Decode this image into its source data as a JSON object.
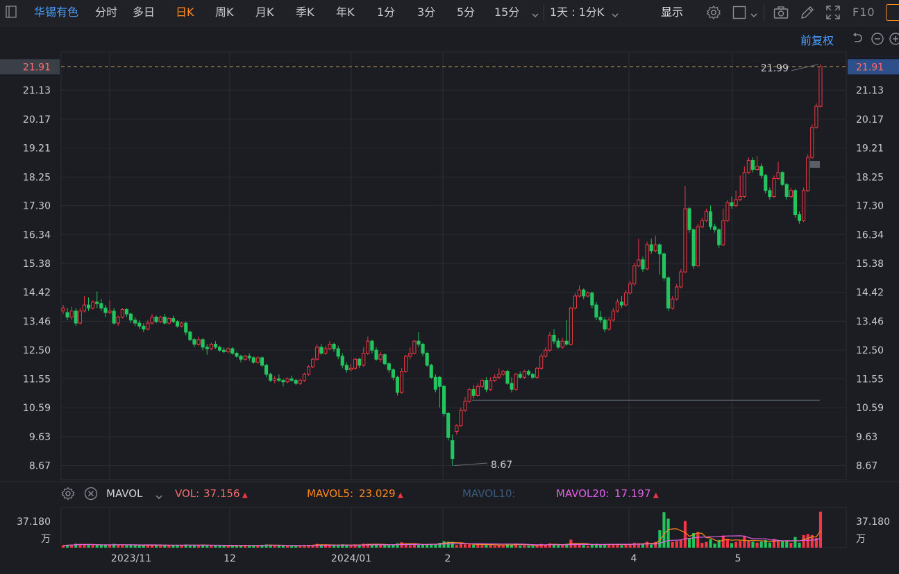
{
  "toolbar": {
    "stock_name": "华锡有色",
    "periods": [
      "分时",
      "多日",
      "日K",
      "周K",
      "月K",
      "季K",
      "年K",
      "1分",
      "3分",
      "5分",
      "15分"
    ],
    "active_period": "日K",
    "interval_select": "1天 : 1分K",
    "display_label": "显示",
    "f10_label": "F10",
    "icons": [
      "sidebar-toggle-icon",
      "chevron-down-icon",
      "gear-icon",
      "square-icon",
      "camera-icon",
      "pen-icon",
      "fullscreen-icon"
    ]
  },
  "fuquan_label": "前复权",
  "price_axis": {
    "ticks": [
      "21.13",
      "20.17",
      "19.21",
      "18.25",
      "17.30",
      "16.34",
      "15.38",
      "14.42",
      "13.46",
      "12.50",
      "11.55",
      "10.59",
      "9.63",
      "8.67"
    ],
    "current_price": "21.91"
  },
  "annotations": {
    "high": "21.99",
    "low": "8.67"
  },
  "volume_panel": {
    "indicator": "MAVOL",
    "vol_label": "VOL:",
    "vol_value": "37.156",
    "mavol5_label": "MAVOL5:",
    "mavol5_value": "23.029",
    "mavol10_label": "MAVOL10:",
    "mavol20_label": "MAVOL20:",
    "mavol20_value": "17.197",
    "axis_value": "37.180",
    "axis_unit": "万"
  },
  "x_axis": {
    "labels": [
      "2023/11",
      "12",
      "2024/01",
      "2",
      "4",
      "5"
    ]
  },
  "colors": {
    "up": "#f23645",
    "down": "#22c55e",
    "bg": "#1b1d22",
    "grid": "#2a2d33",
    "mavol5": "#ff8a1f",
    "mavol20": "#e062e6",
    "current_tag": "#2d4f8a"
  },
  "chart_data": {
    "type": "candlestick",
    "x_labels": [
      "2023/11",
      "12",
      "2024/01",
      "2",
      "4",
      "5"
    ],
    "ylim": [
      8.2,
      22.4
    ],
    "price_ticks": [
      21.13,
      20.17,
      19.21,
      18.25,
      17.3,
      16.34,
      15.38,
      14.42,
      13.46,
      12.5,
      11.55,
      10.59,
      9.63,
      8.67
    ],
    "current_price": 21.91,
    "high": 21.99,
    "low": 8.67,
    "support_line": 10.84,
    "candles": [
      [
        13.8,
        13.9,
        13.7,
        14.0
      ],
      [
        13.75,
        13.6,
        13.5,
        13.9
      ],
      [
        13.6,
        13.8,
        13.5,
        13.95
      ],
      [
        13.8,
        13.4,
        13.3,
        13.9
      ],
      [
        13.4,
        13.8,
        13.35,
        13.9
      ],
      [
        13.8,
        14.0,
        13.75,
        14.3
      ],
      [
        14.0,
        13.9,
        13.8,
        14.25
      ],
      [
        13.9,
        14.1,
        13.85,
        14.15
      ],
      [
        14.1,
        14.05,
        13.9,
        14.45
      ],
      [
        14.05,
        13.9,
        13.8,
        14.2
      ],
      [
        13.9,
        13.75,
        13.6,
        14.0
      ],
      [
        13.75,
        13.8,
        13.7,
        14.15
      ],
      [
        13.8,
        13.4,
        13.35,
        13.9
      ],
      [
        13.4,
        13.6,
        13.3,
        13.65
      ],
      [
        13.6,
        13.85,
        13.55,
        13.9
      ],
      [
        13.85,
        13.7,
        13.6,
        13.9
      ],
      [
        13.7,
        13.5,
        13.4,
        13.75
      ],
      [
        13.5,
        13.4,
        13.3,
        13.6
      ],
      [
        13.4,
        13.3,
        13.2,
        13.5
      ],
      [
        13.3,
        13.2,
        13.1,
        13.4
      ],
      [
        13.2,
        13.4,
        13.15,
        13.5
      ],
      [
        13.4,
        13.6,
        13.35,
        13.7
      ],
      [
        13.6,
        13.45,
        13.4,
        13.65
      ],
      [
        13.45,
        13.6,
        13.4,
        13.65
      ],
      [
        13.6,
        13.4,
        13.35,
        13.7
      ],
      [
        13.4,
        13.55,
        13.35,
        13.6
      ],
      [
        13.55,
        13.45,
        13.4,
        13.65
      ],
      [
        13.45,
        13.3,
        13.25,
        13.5
      ],
      [
        13.3,
        13.4,
        13.25,
        13.45
      ],
      [
        13.4,
        13.1,
        13.0,
        13.45
      ],
      [
        13.1,
        12.85,
        12.8,
        13.15
      ],
      [
        12.85,
        12.7,
        12.6,
        12.9
      ],
      [
        12.7,
        12.85,
        12.65,
        12.95
      ],
      [
        12.85,
        12.6,
        12.5,
        12.9
      ],
      [
        12.6,
        12.55,
        12.35,
        12.7
      ],
      [
        12.55,
        12.7,
        12.5,
        12.75
      ],
      [
        12.7,
        12.6,
        12.55,
        12.8
      ],
      [
        12.6,
        12.5,
        12.45,
        12.65
      ],
      [
        12.5,
        12.45,
        12.4,
        12.6
      ],
      [
        12.45,
        12.55,
        12.4,
        12.6
      ],
      [
        12.55,
        12.4,
        12.35,
        12.6
      ],
      [
        12.4,
        12.3,
        12.25,
        12.45
      ],
      [
        12.3,
        12.2,
        12.1,
        12.35
      ],
      [
        12.2,
        12.3,
        12.15,
        12.35
      ],
      [
        12.3,
        12.25,
        12.15,
        12.4
      ],
      [
        12.25,
        12.1,
        12.05,
        12.3
      ],
      [
        12.1,
        12.25,
        12.05,
        12.3
      ],
      [
        12.25,
        12.0,
        11.95,
        12.3
      ],
      [
        12.0,
        11.7,
        11.6,
        12.05
      ],
      [
        11.7,
        11.5,
        11.45,
        11.75
      ],
      [
        11.5,
        11.55,
        11.4,
        11.65
      ],
      [
        11.55,
        11.5,
        11.45,
        11.7
      ],
      [
        11.5,
        11.45,
        11.3,
        11.55
      ],
      [
        11.45,
        11.55,
        11.4,
        11.6
      ],
      [
        11.55,
        11.5,
        11.45,
        11.65
      ],
      [
        11.5,
        11.4,
        11.35,
        11.55
      ],
      [
        11.4,
        11.5,
        11.35,
        11.55
      ],
      [
        11.5,
        11.7,
        11.45,
        11.75
      ],
      [
        11.7,
        11.95,
        11.65,
        12.0
      ],
      [
        11.95,
        12.2,
        11.9,
        12.25
      ],
      [
        12.2,
        12.6,
        12.15,
        12.7
      ],
      [
        12.6,
        12.4,
        12.35,
        12.7
      ],
      [
        12.4,
        12.55,
        12.35,
        12.65
      ],
      [
        12.55,
        12.7,
        12.5,
        12.8
      ],
      [
        12.7,
        12.55,
        12.45,
        12.75
      ],
      [
        12.55,
        12.3,
        12.2,
        12.65
      ],
      [
        12.3,
        12.0,
        11.9,
        12.4
      ],
      [
        12.0,
        11.85,
        11.75,
        12.1
      ],
      [
        11.85,
        11.9,
        11.8,
        12.05
      ],
      [
        11.9,
        12.2,
        11.85,
        12.25
      ],
      [
        12.2,
        12.0,
        11.9,
        12.25
      ],
      [
        12.0,
        12.4,
        11.95,
        12.6
      ],
      [
        12.4,
        12.8,
        12.35,
        12.95
      ],
      [
        12.8,
        12.5,
        12.4,
        12.85
      ],
      [
        12.5,
        12.2,
        12.15,
        12.6
      ],
      [
        12.2,
        12.35,
        12.1,
        12.45
      ],
      [
        12.35,
        12.05,
        12.0,
        12.4
      ],
      [
        12.05,
        11.85,
        11.75,
        12.1
      ],
      [
        11.85,
        11.6,
        11.5,
        11.9
      ],
      [
        11.6,
        11.1,
        11.0,
        11.65
      ],
      [
        11.1,
        11.8,
        11.05,
        11.9
      ],
      [
        11.8,
        12.3,
        11.75,
        12.35
      ],
      [
        12.3,
        12.4,
        12.2,
        12.6
      ],
      [
        12.4,
        12.8,
        12.35,
        12.85
      ],
      [
        12.8,
        12.7,
        12.6,
        13.1
      ],
      [
        12.7,
        12.4,
        12.3,
        12.75
      ],
      [
        12.4,
        12.0,
        11.95,
        12.45
      ],
      [
        12.0,
        11.6,
        11.55,
        12.05
      ],
      [
        11.6,
        11.2,
        11.1,
        11.7
      ],
      [
        11.6,
        11.3,
        10.6,
        11.65
      ],
      [
        11.3,
        10.4,
        10.3,
        11.35
      ],
      [
        10.4,
        9.6,
        9.5,
        10.45
      ],
      [
        9.5,
        8.9,
        8.67,
        9.7
      ],
      [
        9.8,
        10.0,
        9.7,
        10.05
      ],
      [
        10.0,
        10.5,
        9.95,
        10.6
      ],
      [
        10.5,
        10.8,
        10.45,
        10.95
      ],
      [
        10.8,
        11.2,
        10.75,
        11.25
      ],
      [
        11.2,
        11.0,
        10.9,
        11.35
      ],
      [
        11.0,
        11.3,
        10.95,
        11.4
      ],
      [
        11.3,
        11.5,
        11.25,
        11.55
      ],
      [
        11.5,
        11.2,
        11.1,
        11.6
      ],
      [
        11.2,
        11.5,
        11.15,
        11.6
      ],
      [
        11.5,
        11.6,
        11.45,
        11.7
      ],
      [
        11.6,
        11.7,
        11.55,
        11.9
      ],
      [
        11.7,
        11.8,
        11.65,
        11.85
      ],
      [
        11.8,
        11.4,
        11.35,
        11.85
      ],
      [
        11.4,
        11.2,
        11.1,
        11.6
      ],
      [
        11.2,
        11.7,
        11.15,
        11.75
      ],
      [
        11.7,
        11.6,
        11.55,
        11.8
      ],
      [
        11.6,
        11.8,
        11.55,
        11.85
      ],
      [
        11.8,
        11.7,
        11.65,
        11.85
      ],
      [
        11.7,
        11.6,
        11.55,
        11.75
      ],
      [
        11.6,
        11.9,
        11.55,
        11.95
      ],
      [
        11.9,
        12.3,
        11.85,
        12.4
      ],
      [
        12.3,
        12.5,
        12.25,
        12.6
      ],
      [
        12.5,
        13.0,
        12.45,
        13.1
      ],
      [
        13.0,
        12.8,
        12.7,
        13.2
      ],
      [
        12.8,
        12.6,
        12.55,
        12.9
      ],
      [
        12.6,
        12.8,
        12.55,
        12.9
      ],
      [
        12.8,
        12.7,
        12.65,
        13.5
      ],
      [
        12.7,
        13.9,
        12.65,
        13.95
      ],
      [
        13.9,
        14.3,
        13.85,
        14.4
      ],
      [
        14.3,
        14.5,
        14.25,
        14.65
      ],
      [
        14.5,
        14.3,
        14.2,
        14.55
      ],
      [
        14.3,
        14.4,
        14.25,
        14.45
      ],
      [
        14.4,
        14.0,
        13.9,
        14.45
      ],
      [
        14.0,
        13.6,
        13.5,
        14.1
      ],
      [
        13.6,
        13.5,
        13.4,
        13.8
      ],
      [
        13.5,
        13.2,
        13.1,
        13.6
      ],
      [
        13.2,
        13.5,
        13.15,
        13.6
      ],
      [
        13.5,
        13.8,
        13.45,
        13.9
      ],
      [
        13.8,
        14.1,
        13.75,
        14.2
      ],
      [
        14.1,
        14.0,
        13.9,
        14.3
      ],
      [
        14.0,
        14.4,
        13.95,
        14.5
      ],
      [
        14.4,
        14.7,
        14.35,
        14.8
      ],
      [
        14.7,
        15.3,
        14.65,
        15.4
      ],
      [
        15.3,
        15.5,
        15.25,
        16.2
      ],
      [
        15.5,
        15.2,
        15.1,
        15.6
      ],
      [
        15.2,
        16.0,
        15.15,
        16.1
      ],
      [
        16.0,
        15.8,
        15.7,
        16.2
      ],
      [
        15.8,
        16.0,
        15.75,
        16.3
      ],
      [
        16.0,
        15.7,
        15.0,
        16.05
      ],
      [
        15.7,
        14.9,
        14.8,
        15.75
      ],
      [
        14.9,
        13.9,
        13.8,
        14.95
      ],
      [
        13.9,
        14.2,
        13.85,
        14.3
      ],
      [
        14.2,
        14.6,
        14.15,
        14.7
      ],
      [
        14.6,
        15.1,
        14.55,
        15.2
      ],
      [
        15.1,
        17.2,
        15.05,
        17.95
      ],
      [
        17.2,
        16.5,
        16.4,
        17.25
      ],
      [
        16.5,
        15.3,
        15.2,
        16.55
      ],
      [
        15.3,
        16.6,
        15.25,
        16.7
      ],
      [
        16.6,
        16.8,
        16.55,
        16.9
      ],
      [
        16.8,
        17.1,
        16.75,
        17.2
      ],
      [
        17.1,
        16.6,
        16.5,
        17.3
      ],
      [
        16.6,
        16.5,
        16.4,
        16.7
      ],
      [
        16.5,
        16.0,
        15.9,
        16.55
      ],
      [
        16.0,
        16.8,
        15.95,
        17.2
      ],
      [
        16.8,
        17.4,
        16.75,
        17.5
      ],
      [
        17.4,
        17.3,
        17.2,
        17.6
      ],
      [
        17.3,
        17.5,
        17.25,
        17.8
      ],
      [
        17.5,
        17.6,
        17.45,
        18.3
      ],
      [
        17.6,
        18.4,
        17.55,
        18.6
      ],
      [
        18.4,
        18.8,
        18.35,
        18.9
      ],
      [
        18.8,
        18.5,
        18.4,
        18.9
      ],
      [
        18.5,
        18.6,
        18.45,
        18.95
      ],
      [
        18.6,
        18.3,
        18.2,
        18.7
      ],
      [
        18.3,
        17.8,
        17.7,
        18.35
      ],
      [
        17.8,
        17.6,
        17.5,
        17.9
      ],
      [
        17.6,
        18.2,
        17.55,
        18.3
      ],
      [
        18.2,
        18.4,
        18.15,
        18.75
      ],
      [
        18.4,
        18.0,
        17.95,
        18.45
      ],
      [
        18.0,
        17.6,
        17.5,
        18.05
      ],
      [
        17.6,
        17.8,
        17.55,
        17.9
      ],
      [
        17.8,
        17.0,
        16.9,
        17.85
      ],
      [
        17.0,
        16.8,
        16.7,
        17.1
      ],
      [
        16.8,
        17.8,
        16.75,
        17.9
      ],
      [
        17.8,
        18.9,
        17.75,
        19.0
      ],
      [
        18.9,
        19.9,
        18.85,
        20.0
      ],
      [
        19.9,
        20.6,
        19.85,
        20.7
      ],
      [
        20.6,
        21.91,
        20.55,
        21.99
      ]
    ],
    "volume": {
      "max": 37.18,
      "last": 37.156,
      "mavol5": 23.029,
      "mavol20": 17.197,
      "unit": "万"
    }
  }
}
